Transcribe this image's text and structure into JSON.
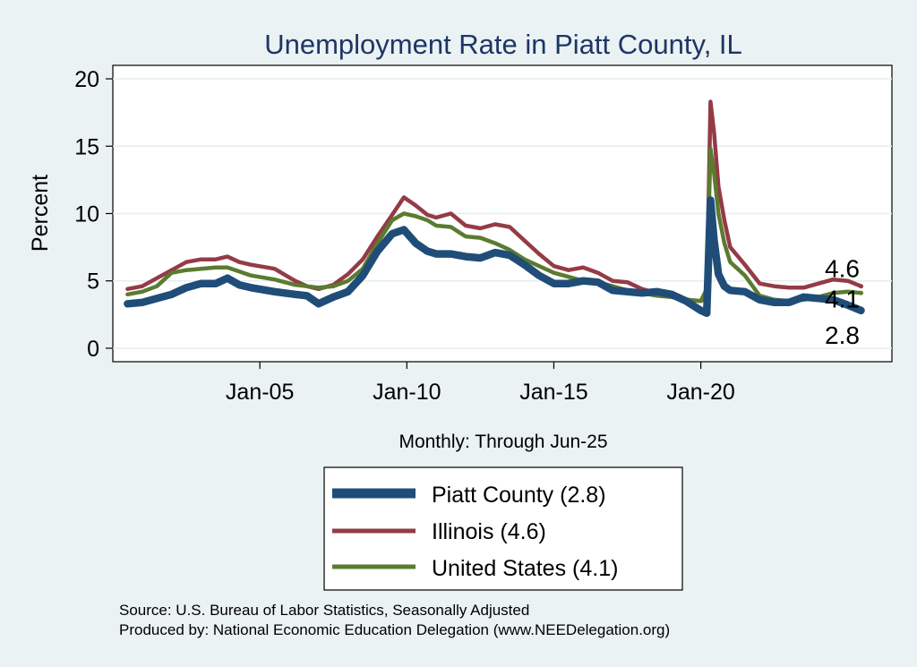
{
  "chart_data": {
    "type": "line",
    "title": "Unemployment Rate in Piatt  County, IL",
    "ylabel": "Percent",
    "xlabel": "Monthly: Through Jun-25",
    "ylim": [
      -1,
      21
    ],
    "xlim": [
      2000.0,
      2026.5
    ],
    "yticks": [
      0,
      5,
      10,
      15,
      20
    ],
    "xticks": [
      {
        "value": 2005.0,
        "label": "Jan-05"
      },
      {
        "value": 2010.0,
        "label": "Jan-10"
      },
      {
        "value": 2015.0,
        "label": "Jan-15"
      },
      {
        "value": 2020.0,
        "label": "Jan-20"
      }
    ],
    "grid": true,
    "legend_position": "bottom-center",
    "series": [
      {
        "name": "Illinois",
        "legend_label": "Illinois (4.6)",
        "color": "#943b46",
        "end_label": "4.6",
        "x": [
          2000.5,
          2001.0,
          2001.5,
          2002.0,
          2002.5,
          2003.0,
          2003.5,
          2003.9,
          2004.3,
          2004.7,
          2005.5,
          2006.2,
          2006.6,
          2007.0,
          2007.5,
          2008.0,
          2008.5,
          2009.0,
          2009.5,
          2009.9,
          2010.3,
          2010.7,
          2011.0,
          2011.5,
          2012.0,
          2012.5,
          2013.0,
          2013.5,
          2014.0,
          2014.5,
          2015.0,
          2015.5,
          2016.0,
          2016.5,
          2017.0,
          2017.5,
          2018.0,
          2018.5,
          2019.0,
          2019.5,
          2020.0,
          2020.2,
          2020.33,
          2020.45,
          2020.6,
          2020.8,
          2021.0,
          2021.5,
          2022.0,
          2022.5,
          2023.0,
          2023.5,
          2024.0,
          2024.5,
          2025.0,
          2025.45
        ],
        "y": [
          4.4,
          4.6,
          5.2,
          5.8,
          6.4,
          6.6,
          6.6,
          6.8,
          6.4,
          6.2,
          5.9,
          5.0,
          4.6,
          4.4,
          4.7,
          5.5,
          6.6,
          8.3,
          9.9,
          11.2,
          10.6,
          9.9,
          9.7,
          10.0,
          9.1,
          8.9,
          9.2,
          9.0,
          8.0,
          7.0,
          6.1,
          5.8,
          6.0,
          5.6,
          5.0,
          4.9,
          4.4,
          4.1,
          3.9,
          3.6,
          3.5,
          3.8,
          18.3,
          16.0,
          12.0,
          9.5,
          7.5,
          6.2,
          4.8,
          4.6,
          4.5,
          4.5,
          4.8,
          5.1,
          5.0,
          4.6
        ]
      },
      {
        "name": "United States",
        "legend_label": "United States (4.1)",
        "color": "#5b7b30",
        "end_label": "4.1",
        "x": [
          2000.5,
          2001.0,
          2001.5,
          2002.0,
          2002.5,
          2003.0,
          2003.5,
          2003.9,
          2004.3,
          2004.7,
          2005.5,
          2006.2,
          2006.6,
          2007.0,
          2007.5,
          2008.0,
          2008.5,
          2009.0,
          2009.5,
          2009.9,
          2010.3,
          2010.7,
          2011.0,
          2011.5,
          2012.0,
          2012.5,
          2013.0,
          2013.5,
          2014.0,
          2014.5,
          2015.0,
          2015.5,
          2016.0,
          2016.5,
          2017.0,
          2017.5,
          2018.0,
          2018.5,
          2019.0,
          2019.5,
          2020.0,
          2020.2,
          2020.33,
          2020.45,
          2020.6,
          2020.8,
          2021.0,
          2021.5,
          2022.0,
          2022.5,
          2023.0,
          2023.5,
          2024.0,
          2024.5,
          2025.0,
          2025.45
        ],
        "y": [
          4.0,
          4.2,
          4.6,
          5.6,
          5.8,
          5.9,
          6.0,
          6.0,
          5.7,
          5.4,
          5.1,
          4.7,
          4.6,
          4.5,
          4.6,
          5.0,
          5.9,
          7.8,
          9.5,
          10.0,
          9.8,
          9.5,
          9.1,
          9.0,
          8.3,
          8.2,
          7.8,
          7.3,
          6.6,
          6.1,
          5.6,
          5.3,
          5.0,
          4.9,
          4.6,
          4.3,
          4.1,
          3.9,
          3.8,
          3.6,
          3.5,
          4.4,
          14.8,
          13.0,
          10.0,
          7.8,
          6.4,
          5.4,
          3.9,
          3.6,
          3.5,
          3.6,
          3.8,
          4.1,
          4.2,
          4.1
        ]
      },
      {
        "name": "Piatt  County",
        "legend_label": "Piatt  County (2.8)",
        "color": "#1f4d78",
        "end_label": "2.8",
        "x": [
          2000.5,
          2001.0,
          2001.5,
          2002.0,
          2002.5,
          2003.0,
          2003.5,
          2003.9,
          2004.3,
          2004.7,
          2005.5,
          2006.2,
          2006.6,
          2007.0,
          2007.5,
          2008.0,
          2008.5,
          2009.0,
          2009.5,
          2009.9,
          2010.3,
          2010.7,
          2011.0,
          2011.5,
          2012.0,
          2012.5,
          2013.0,
          2013.5,
          2014.0,
          2014.5,
          2015.0,
          2015.5,
          2016.0,
          2016.5,
          2017.0,
          2017.5,
          2018.0,
          2018.5,
          2019.0,
          2019.5,
          2020.0,
          2020.2,
          2020.33,
          2020.45,
          2020.6,
          2020.8,
          2021.0,
          2021.5,
          2022.0,
          2022.5,
          2023.0,
          2023.5,
          2024.0,
          2024.5,
          2025.0,
          2025.45
        ],
        "y": [
          3.3,
          3.4,
          3.7,
          4.0,
          4.5,
          4.8,
          4.8,
          5.2,
          4.7,
          4.5,
          4.2,
          4.0,
          3.9,
          3.3,
          3.8,
          4.2,
          5.4,
          7.2,
          8.5,
          8.8,
          7.8,
          7.2,
          7.0,
          7.0,
          6.8,
          6.7,
          7.1,
          6.9,
          6.2,
          5.4,
          4.8,
          4.8,
          5.0,
          4.9,
          4.3,
          4.2,
          4.1,
          4.2,
          4.0,
          3.5,
          2.8,
          2.6,
          11.0,
          8.0,
          5.5,
          4.6,
          4.3,
          4.2,
          3.6,
          3.4,
          3.4,
          3.8,
          3.7,
          3.6,
          3.2,
          2.8
        ]
      }
    ]
  },
  "source_line": "Source: U.S. Bureau of Labor Statistics, Seasonally Adjusted",
  "produced_line": "Produced by: National Economic Education Delegation (www.NEEDelegation.org)"
}
